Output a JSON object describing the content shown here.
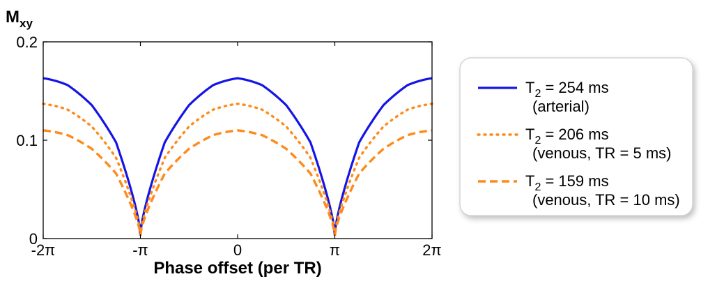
{
  "chart_data": {
    "type": "line",
    "xlabel": "Phase offset (per TR)",
    "ylabel": "M",
    "ylabel_sub": "xy",
    "xlim": [
      -6.2832,
      6.2832
    ],
    "ylim": [
      0,
      0.2
    ],
    "grid": false,
    "legend_position": "right",
    "x_ticks": [
      {
        "value": -6.2832,
        "label": "-2π"
      },
      {
        "value": -3.1416,
        "label": "-π"
      },
      {
        "value": 0,
        "label": "0"
      },
      {
        "value": 3.1416,
        "label": "π"
      },
      {
        "value": 6.2832,
        "label": "2π"
      }
    ],
    "y_ticks": [
      {
        "value": 0,
        "label": "0"
      },
      {
        "value": 0.1,
        "label": "0.1"
      },
      {
        "value": 0.2,
        "label": "0.2"
      }
    ],
    "x": [
      -6.2832,
      -5.4978,
      -4.7124,
      -3.927,
      -3.1416,
      -2.3562,
      -1.5708,
      -0.7854,
      0,
      0.7854,
      1.5708,
      2.3562,
      3.1416,
      3.927,
      4.7124,
      5.4978,
      6.2832
    ],
    "series": [
      {
        "legend_main": "T",
        "legend_sub": "2",
        "legend_rest": " = 254 ms",
        "legend_note": "(arterial)",
        "color": "#1414e6",
        "dash": "solid",
        "values": [
          0.163,
          0.156,
          0.136,
          0.098,
          0.003,
          0.098,
          0.136,
          0.156,
          0.163,
          0.156,
          0.136,
          0.098,
          0.003,
          0.098,
          0.136,
          0.156,
          0.163
        ]
      },
      {
        "legend_main": "T",
        "legend_sub": "2",
        "legend_rest": " = 206 ms",
        "legend_note": "(venous, TR = 5 ms)",
        "color": "#ff8a1a",
        "dash": "dotted",
        "values": [
          0.137,
          0.131,
          0.114,
          0.082,
          0.003,
          0.082,
          0.114,
          0.131,
          0.137,
          0.131,
          0.114,
          0.082,
          0.003,
          0.082,
          0.114,
          0.131,
          0.137
        ]
      },
      {
        "legend_main": "T",
        "legend_sub": "2",
        "legend_rest": " = 159 ms",
        "legend_note": "(venous, TR = 10 ms)",
        "color": "#ff8a1a",
        "dash": "dashed",
        "values": [
          0.11,
          0.105,
          0.091,
          0.066,
          0.003,
          0.066,
          0.091,
          0.105,
          0.11,
          0.105,
          0.091,
          0.066,
          0.003,
          0.066,
          0.091,
          0.105,
          0.11
        ]
      }
    ]
  }
}
